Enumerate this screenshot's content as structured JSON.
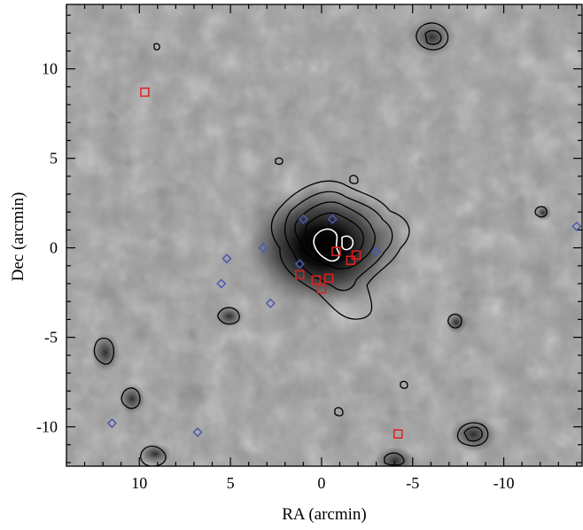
{
  "chart_data": {
    "type": "scatter",
    "title": "",
    "xlabel": "RA (arcmin)",
    "ylabel": "Dec (arcmin)",
    "x_inverted": true,
    "xlim": [
      14.0,
      -14.3
    ],
    "ylim": [
      -12.2,
      13.6
    ],
    "x_ticks": [
      10,
      5,
      0,
      -5,
      -10
    ],
    "x_tick_labels": [
      "10",
      "5",
      "0",
      "-5",
      "-10"
    ],
    "y_ticks": [
      10,
      5,
      0,
      -5,
      -10
    ],
    "y_tick_labels": [
      "10",
      "5",
      "0",
      "-5",
      "-10"
    ],
    "background": "greyscale surface-density map with black and white contours",
    "contour_colors": {
      "outer": "#000000",
      "core": "#ffffff"
    },
    "series": [
      {
        "marker": "square",
        "color": "#e02020",
        "points": [
          [
            9.7,
            8.7
          ],
          [
            1.2,
            -1.5
          ],
          [
            0.3,
            -1.8
          ],
          [
            0.0,
            -2.3
          ],
          [
            -0.4,
            -1.7
          ],
          [
            -0.8,
            -0.2
          ],
          [
            -1.6,
            -0.7
          ],
          [
            -1.9,
            -0.4
          ],
          [
            -4.2,
            -10.4
          ]
        ]
      },
      {
        "marker": "diamond",
        "color": "#4a5ab0",
        "points": [
          [
            1.0,
            1.6
          ],
          [
            -0.6,
            1.6
          ],
          [
            3.2,
            0.0
          ],
          [
            5.2,
            -0.6
          ],
          [
            5.5,
            -2.0
          ],
          [
            2.8,
            -3.1
          ],
          [
            1.2,
            -0.9
          ],
          [
            -3.0,
            -0.2
          ],
          [
            11.5,
            -9.8
          ],
          [
            6.8,
            -10.3
          ],
          [
            -14.0,
            1.2
          ]
        ]
      }
    ]
  }
}
